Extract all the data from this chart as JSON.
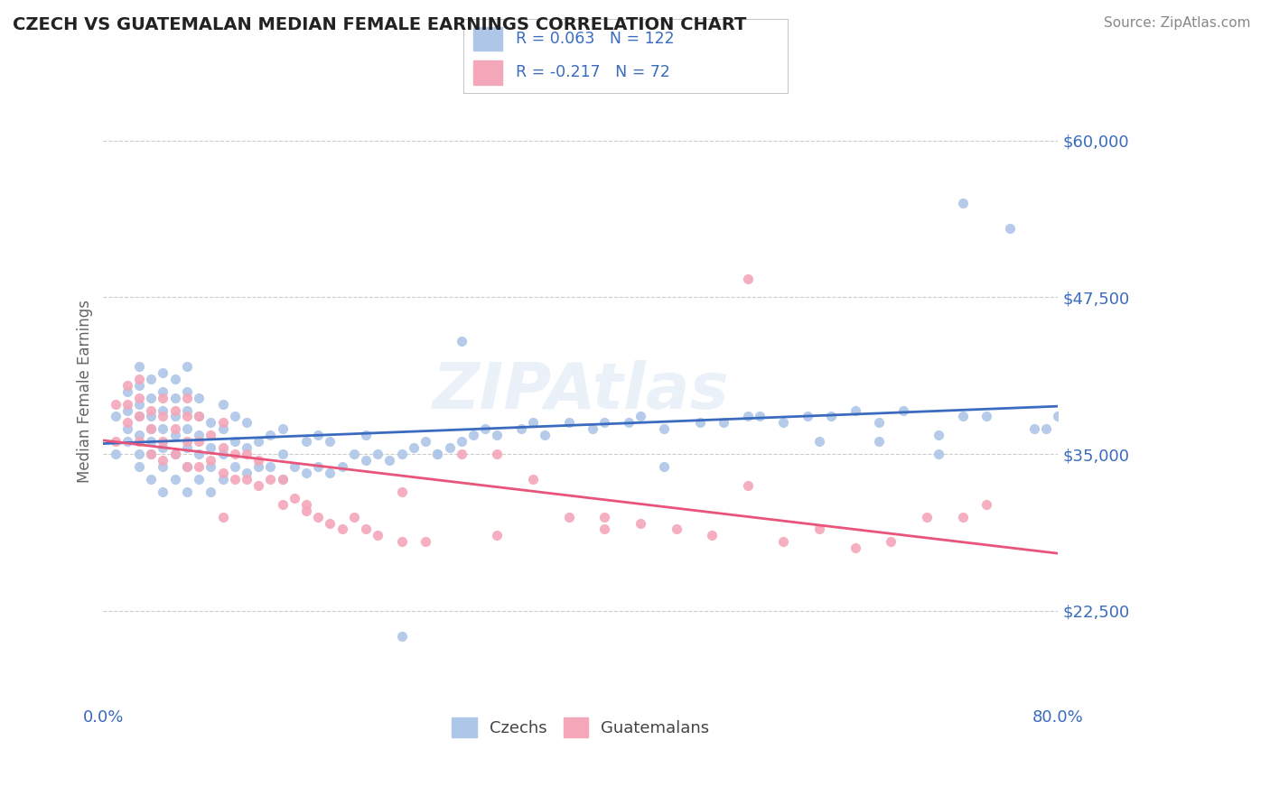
{
  "title": "CZECH VS GUATEMALAN MEDIAN FEMALE EARNINGS CORRELATION CHART",
  "source": "Source: ZipAtlas.com",
  "ylabel": "Median Female Earnings",
  "xlim": [
    0.0,
    0.8
  ],
  "ylim": [
    15000,
    65000
  ],
  "yticks": [
    22500,
    35000,
    47500,
    60000
  ],
  "ytick_labels": [
    "$22,500",
    "$35,000",
    "$47,500",
    "$60,000"
  ],
  "xtick_labels": [
    "0.0%",
    "80.0%"
  ],
  "background_color": "#ffffff",
  "grid_color": "#cccccc",
  "czech_color": "#aec6e8",
  "guatemalan_color": "#f4a7b9",
  "czech_line_color": "#3a6bbf",
  "guatemalan_line_color": "#e8547a",
  "legend_czech_R": "0.063",
  "legend_czech_N": "122",
  "legend_guatemalan_R": "-0.217",
  "legend_guatemalan_N": "72",
  "watermark": "ZIPAtlas",
  "title_color": "#222222",
  "axis_label_color": "#3a6bbf",
  "czech_scatter": {
    "x": [
      0.01,
      0.01,
      0.02,
      0.02,
      0.02,
      0.02,
      0.03,
      0.03,
      0.03,
      0.03,
      0.03,
      0.03,
      0.03,
      0.04,
      0.04,
      0.04,
      0.04,
      0.04,
      0.04,
      0.04,
      0.05,
      0.05,
      0.05,
      0.05,
      0.05,
      0.05,
      0.05,
      0.06,
      0.06,
      0.06,
      0.06,
      0.06,
      0.06,
      0.07,
      0.07,
      0.07,
      0.07,
      0.07,
      0.07,
      0.07,
      0.08,
      0.08,
      0.08,
      0.08,
      0.08,
      0.09,
      0.09,
      0.09,
      0.09,
      0.1,
      0.1,
      0.1,
      0.1,
      0.11,
      0.11,
      0.11,
      0.12,
      0.12,
      0.12,
      0.13,
      0.13,
      0.14,
      0.14,
      0.15,
      0.15,
      0.15,
      0.16,
      0.17,
      0.17,
      0.18,
      0.18,
      0.19,
      0.19,
      0.2,
      0.21,
      0.22,
      0.22,
      0.23,
      0.24,
      0.25,
      0.25,
      0.26,
      0.27,
      0.28,
      0.29,
      0.3,
      0.31,
      0.32,
      0.33,
      0.35,
      0.36,
      0.37,
      0.39,
      0.41,
      0.42,
      0.44,
      0.45,
      0.47,
      0.5,
      0.52,
      0.54,
      0.57,
      0.59,
      0.61,
      0.63,
      0.65,
      0.67,
      0.7,
      0.72,
      0.74,
      0.76,
      0.78,
      0.79,
      0.8,
      0.65,
      0.7,
      0.55,
      0.6,
      0.47,
      0.72,
      0.28,
      0.3
    ],
    "y": [
      38000,
      35000,
      36000,
      37000,
      38500,
      40000,
      34000,
      35000,
      36500,
      38000,
      39000,
      40500,
      42000,
      33000,
      35000,
      36000,
      37000,
      38000,
      39500,
      41000,
      32000,
      34000,
      35500,
      37000,
      38500,
      40000,
      41500,
      33000,
      35000,
      36500,
      38000,
      39500,
      41000,
      32000,
      34000,
      35500,
      37000,
      38500,
      40000,
      42000,
      33000,
      35000,
      36500,
      38000,
      39500,
      32000,
      34000,
      35500,
      37500,
      33000,
      35000,
      37000,
      39000,
      34000,
      36000,
      38000,
      33500,
      35500,
      37500,
      34000,
      36000,
      34000,
      36500,
      33000,
      35000,
      37000,
      34000,
      33500,
      36000,
      34000,
      36500,
      33500,
      36000,
      34000,
      35000,
      34500,
      36500,
      35000,
      34500,
      35000,
      20500,
      35500,
      36000,
      35000,
      35500,
      36000,
      36500,
      37000,
      36500,
      37000,
      37500,
      36500,
      37500,
      37000,
      37500,
      37500,
      38000,
      37000,
      37500,
      37500,
      38000,
      37500,
      38000,
      38000,
      38500,
      37500,
      38500,
      36500,
      38000,
      38000,
      53000,
      37000,
      37000,
      38000,
      36000,
      35000,
      38000,
      36000,
      34000,
      55000,
      35000,
      44000
    ]
  },
  "guatemalan_scatter": {
    "x": [
      0.01,
      0.01,
      0.02,
      0.02,
      0.02,
      0.03,
      0.03,
      0.03,
      0.03,
      0.04,
      0.04,
      0.04,
      0.05,
      0.05,
      0.05,
      0.05,
      0.06,
      0.06,
      0.06,
      0.07,
      0.07,
      0.07,
      0.07,
      0.08,
      0.08,
      0.08,
      0.09,
      0.09,
      0.1,
      0.1,
      0.1,
      0.11,
      0.11,
      0.12,
      0.12,
      0.13,
      0.13,
      0.14,
      0.15,
      0.15,
      0.16,
      0.17,
      0.18,
      0.19,
      0.2,
      0.21,
      0.22,
      0.23,
      0.25,
      0.27,
      0.3,
      0.33,
      0.36,
      0.39,
      0.42,
      0.45,
      0.48,
      0.51,
      0.54,
      0.57,
      0.6,
      0.63,
      0.66,
      0.69,
      0.72,
      0.74,
      0.54,
      0.42,
      0.33,
      0.25,
      0.17,
      0.1
    ],
    "y": [
      39000,
      36000,
      37500,
      39000,
      40500,
      36000,
      38000,
      39500,
      41000,
      35000,
      37000,
      38500,
      34500,
      36000,
      38000,
      39500,
      35000,
      37000,
      38500,
      34000,
      36000,
      38000,
      39500,
      34000,
      36000,
      38000,
      34500,
      36500,
      33500,
      35500,
      37500,
      33000,
      35000,
      33000,
      35000,
      32500,
      34500,
      33000,
      31000,
      33000,
      31500,
      30500,
      30000,
      29500,
      29000,
      30000,
      29000,
      28500,
      28000,
      28000,
      35000,
      35000,
      33000,
      30000,
      30000,
      29500,
      29000,
      28500,
      49000,
      28000,
      29000,
      27500,
      28000,
      30000,
      30000,
      31000,
      32500,
      29000,
      28500,
      32000,
      31000,
      30000
    ]
  }
}
